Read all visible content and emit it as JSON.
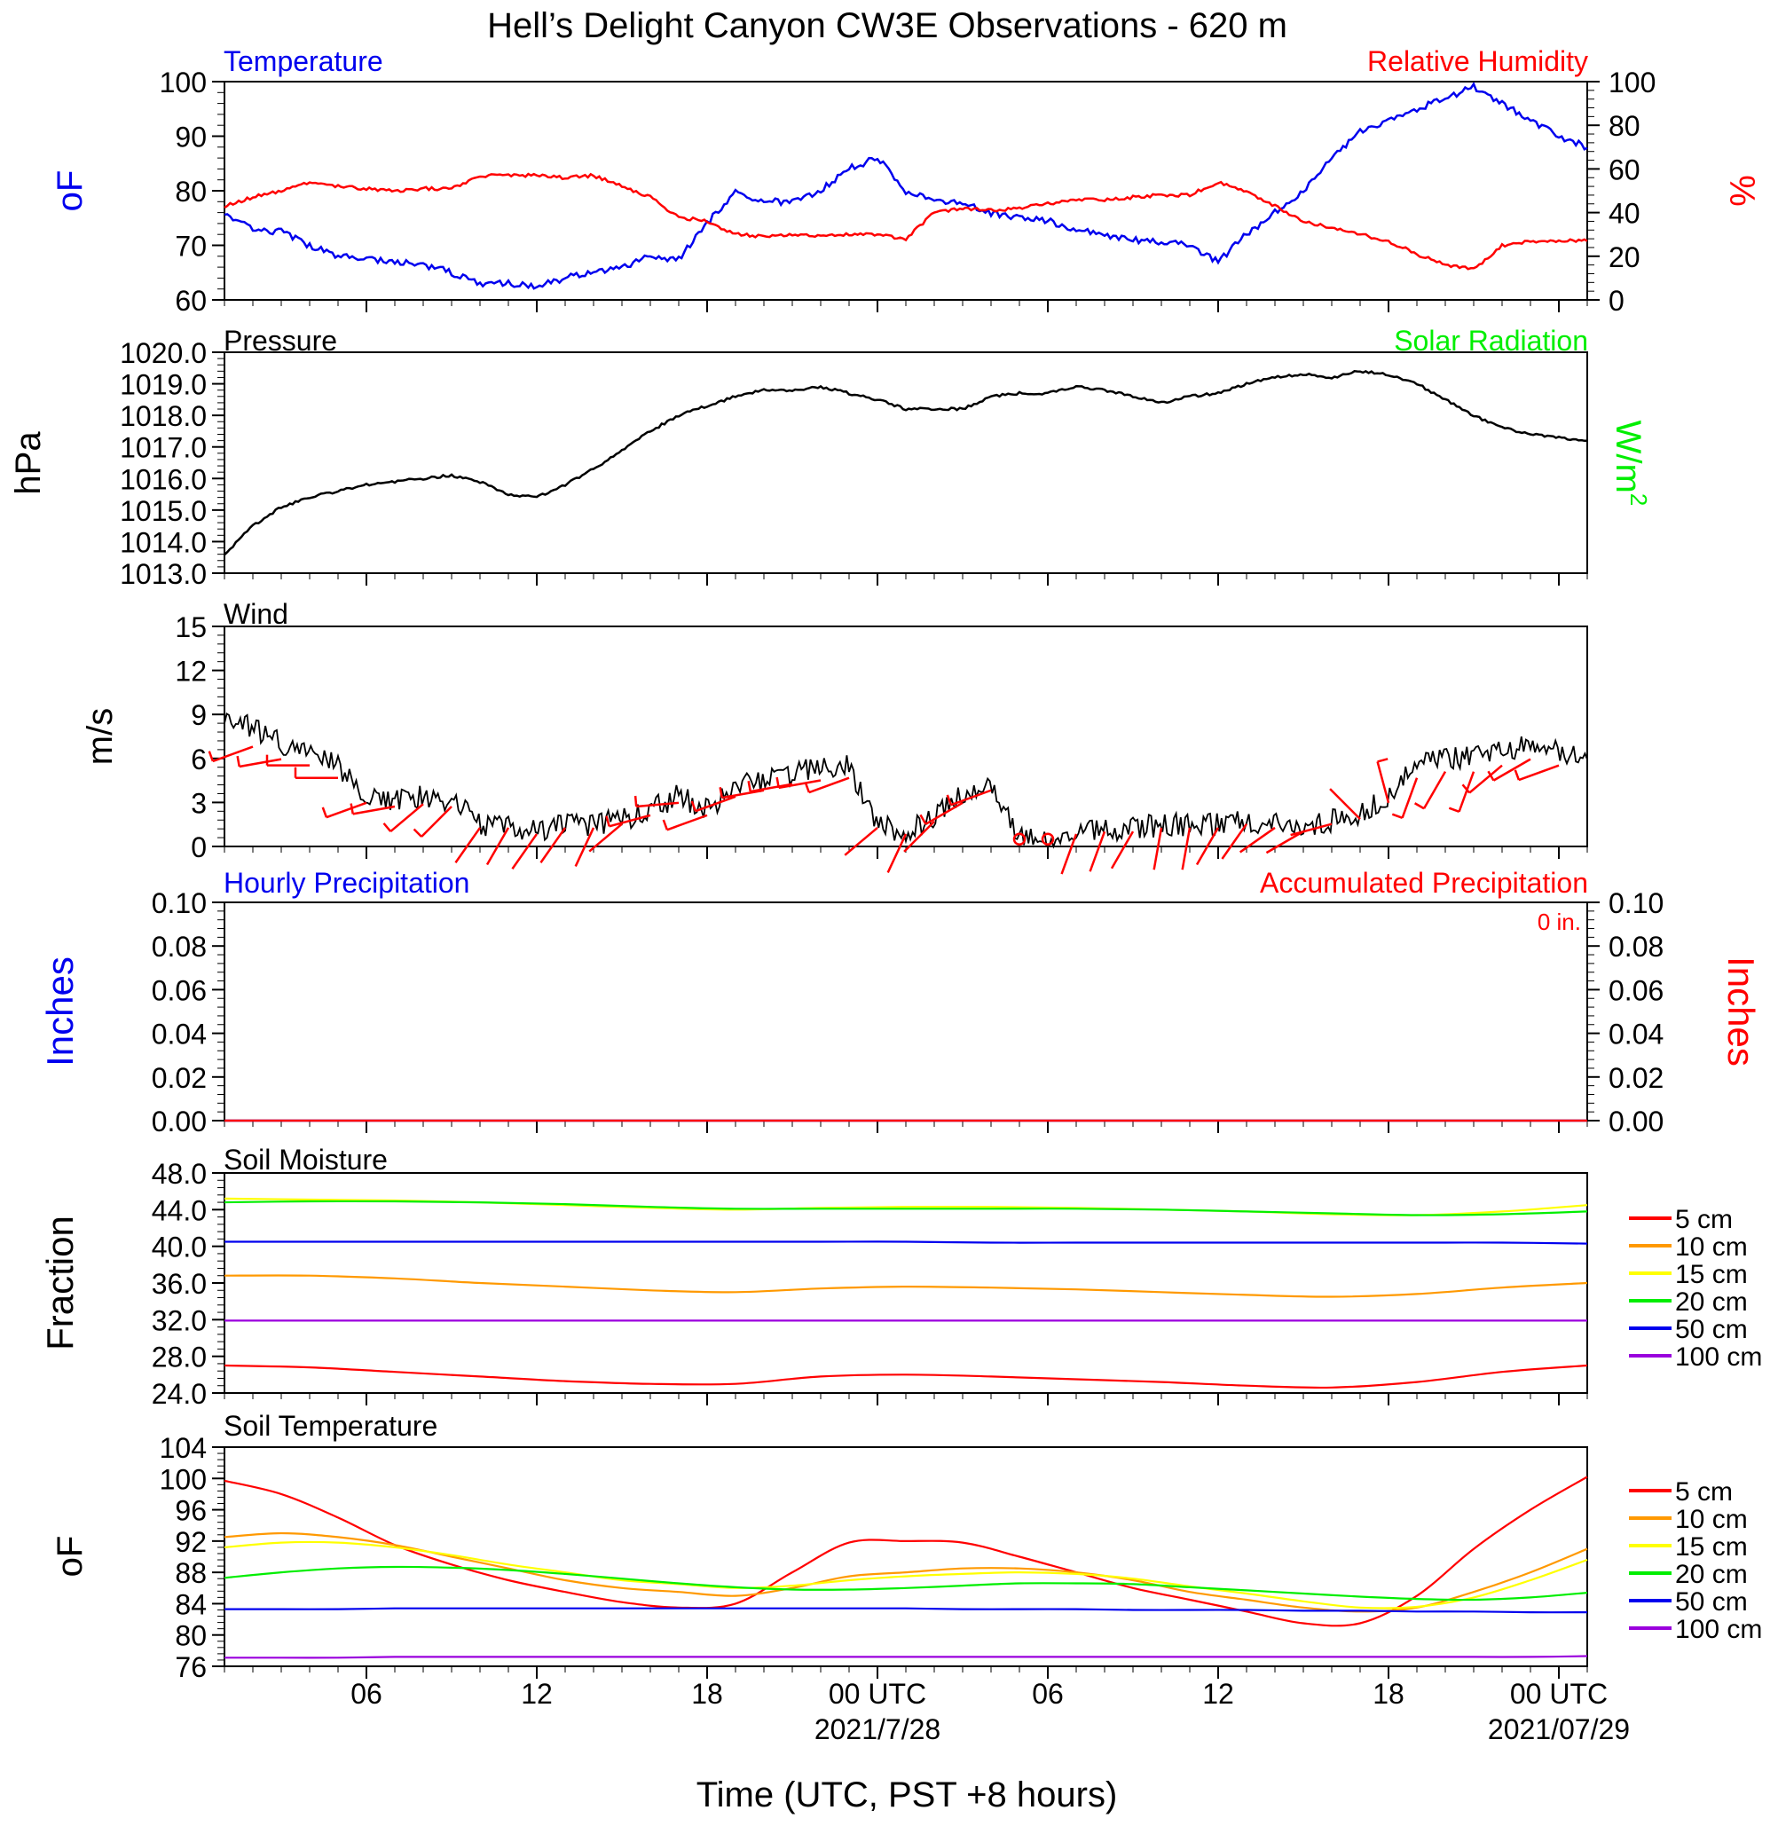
{
  "title": "Hell’s Delight Canyon CW3E Observations - 620 m",
  "xlabel": "Time (UTC, PST +8 hours)",
  "x_axis": {
    "range_hours": [
      0,
      48
    ],
    "ticks": [
      {
        "hour": 5,
        "label": "06",
        "date": ""
      },
      {
        "hour": 11,
        "label": "12",
        "date": ""
      },
      {
        "hour": 17,
        "label": "18",
        "date": ""
      },
      {
        "hour": 23,
        "label": "00 UTC",
        "date": "2021/7/28"
      },
      {
        "hour": 29,
        "label": "06",
        "date": ""
      },
      {
        "hour": 35,
        "label": "12",
        "date": ""
      },
      {
        "hour": 41,
        "label": "18",
        "date": ""
      },
      {
        "hour": 47,
        "label": "00 UTC",
        "date": "2021/07/29"
      }
    ]
  },
  "panels": {
    "temperature": {
      "left_title": "Temperature",
      "right_title": "Relative Humidity",
      "left_unit": "oF",
      "right_unit": "%",
      "left_ticks": [
        "60",
        "70",
        "80",
        "90",
        "100"
      ],
      "left_range": [
        60,
        100
      ],
      "right_ticks": [
        "0",
        "20",
        "40",
        "60",
        "80",
        "100"
      ],
      "right_range": [
        0,
        100
      ]
    },
    "pressure": {
      "left_title": "Pressure",
      "right_title": "Solar Radiation",
      "left_unit": "hPa",
      "right_unit_base": "W/m",
      "right_unit_sup": "2",
      "left_ticks": [
        "1013.0",
        "1014.0",
        "1015.0",
        "1016.0",
        "1017.0",
        "1018.0",
        "1019.0",
        "1020.0"
      ],
      "left_range": [
        1013,
        1020
      ]
    },
    "wind": {
      "left_title": "Wind",
      "left_unit": "m/s",
      "left_ticks": [
        "0",
        "3",
        "6",
        "9",
        "12",
        "15"
      ],
      "left_range": [
        0,
        15
      ]
    },
    "precip": {
      "left_title": "Hourly Precipitation",
      "right_title": "Accumulated Precipitation",
      "total_label": "0 in.",
      "left_unit": "Inches",
      "right_unit": "Inches",
      "left_ticks": [
        "0.00",
        "0.02",
        "0.04",
        "0.06",
        "0.08",
        "0.10"
      ],
      "right_ticks": [
        "0.00",
        "0.02",
        "0.04",
        "0.06",
        "0.08",
        "0.10"
      ],
      "left_range": [
        0,
        0.1
      ]
    },
    "soil_moisture": {
      "left_title": "Soil Moisture",
      "left_unit": "Fraction",
      "left_ticks": [
        "24.0",
        "28.0",
        "32.0",
        "36.0",
        "40.0",
        "44.0",
        "48.0"
      ],
      "left_range": [
        24,
        48
      ]
    },
    "soil_temperature": {
      "left_title": "Soil Temperature",
      "left_unit": "oF",
      "left_ticks": [
        "76",
        "80",
        "84",
        "88",
        "92",
        "96",
        "100",
        "104"
      ],
      "left_range": [
        76,
        104
      ]
    }
  },
  "legend": [
    {
      "label": "5 cm",
      "color": "#ff0000"
    },
    {
      "label": "10 cm",
      "color": "#ff9900"
    },
    {
      "label": "15 cm",
      "color": "#ffff00"
    },
    {
      "label": "20 cm",
      "color": "#00ee00"
    },
    {
      "label": "50 cm",
      "color": "#0000ee"
    },
    {
      "label": "100 cm",
      "color": "#9a00dd"
    }
  ],
  "colors": {
    "temperature": "#0000ee",
    "humidity": "#ff0000",
    "pressure": "#000000",
    "wind": "#000000",
    "barb": "#ff0000",
    "precip": "#ff0000",
    "solar": "#00ee00"
  },
  "chart_data": [
    {
      "type": "line",
      "name": "temperature",
      "x": [
        0,
        1,
        2,
        3,
        4,
        5,
        6,
        7,
        8,
        9,
        10,
        11,
        12,
        13,
        14,
        15,
        16,
        17,
        18,
        19,
        20,
        21,
        22,
        23,
        24,
        25,
        26,
        27,
        28,
        29,
        30,
        31,
        32,
        33,
        34,
        35,
        36,
        37,
        38,
        39,
        40,
        41,
        42,
        43,
        44,
        45,
        46,
        47,
        48
      ],
      "series": [
        {
          "name": "Temperature",
          "axis": "left",
          "values": [
            76,
            73,
            72.5,
            70,
            68,
            67.5,
            67,
            66.5,
            65,
            63,
            63,
            62.5,
            64,
            65,
            66,
            68,
            67.5,
            74,
            80,
            78,
            78,
            80,
            84,
            86,
            80,
            78,
            78,
            76,
            75,
            74.5,
            73,
            72,
            71,
            70.5,
            70,
            67,
            72,
            76,
            80,
            86,
            91,
            93,
            95,
            97,
            99,
            96,
            93,
            90,
            88
          ]
        },
        {
          "name": "Relative Humidity",
          "axis": "right",
          "values": [
            43,
            47,
            50,
            54,
            52,
            51,
            50,
            51,
            51,
            57,
            57,
            57,
            56,
            57,
            52,
            47,
            38,
            36,
            30,
            29,
            30,
            29,
            30,
            30,
            28,
            40,
            42,
            41,
            42,
            44,
            46,
            46,
            47,
            48,
            48,
            54,
            50,
            43,
            36,
            33,
            30,
            27,
            21,
            16,
            14,
            25,
            27,
            27,
            27
          ]
        }
      ]
    },
    {
      "type": "line",
      "name": "pressure",
      "x": [
        0,
        1,
        2,
        3,
        4,
        5,
        6,
        7,
        8,
        9,
        10,
        11,
        12,
        13,
        14,
        15,
        16,
        17,
        18,
        19,
        20,
        21,
        22,
        23,
        24,
        25,
        26,
        27,
        28,
        29,
        30,
        31,
        32,
        33,
        34,
        35,
        36,
        37,
        38,
        39,
        40,
        41,
        42,
        43,
        44,
        45,
        46,
        47,
        48
      ],
      "series": [
        {
          "name": "Pressure",
          "axis": "left",
          "values": [
            1013.6,
            1014.5,
            1015.1,
            1015.4,
            1015.6,
            1015.8,
            1015.9,
            1016.0,
            1016.1,
            1015.9,
            1015.5,
            1015.4,
            1015.8,
            1016.3,
            1016.9,
            1017.5,
            1018.0,
            1018.3,
            1018.6,
            1018.8,
            1018.8,
            1018.9,
            1018.7,
            1018.5,
            1018.2,
            1018.2,
            1018.2,
            1018.6,
            1018.7,
            1018.7,
            1018.9,
            1018.8,
            1018.6,
            1018.4,
            1018.6,
            1018.7,
            1019.0,
            1019.2,
            1019.3,
            1019.2,
            1019.4,
            1019.3,
            1019.0,
            1018.5,
            1018.0,
            1017.6,
            1017.4,
            1017.3,
            1017.2
          ]
        }
      ]
    },
    {
      "type": "line",
      "name": "wind",
      "x": [
        0,
        1,
        2,
        3,
        4,
        5,
        6,
        7,
        8,
        9,
        10,
        11,
        12,
        13,
        14,
        15,
        16,
        17,
        18,
        19,
        20,
        21,
        22,
        23,
        24,
        25,
        26,
        27,
        28,
        29,
        30,
        31,
        32,
        33,
        34,
        35,
        36,
        37,
        38,
        39,
        40,
        41,
        42,
        43,
        44,
        45,
        46,
        47,
        48
      ],
      "series": [
        {
          "name": "Wind speed",
          "axis": "left",
          "values": [
            9.2,
            8,
            7,
            6.5,
            5.5,
            3.5,
            3.2,
            3.4,
            3.2,
            1.5,
            1.5,
            1,
            1.5,
            1.5,
            1.8,
            2.5,
            3.5,
            2.5,
            4,
            4.5,
            5,
            5.3,
            5.5,
            1.5,
            1,
            2,
            3.5,
            4.5,
            0.5,
            0.5,
            1,
            1.2,
            1.2,
            1.5,
            1.5,
            1.5,
            1.8,
            1.5,
            1.2,
            1.8,
            2.2,
            3.5,
            5.5,
            6,
            6,
            6.5,
            7,
            6.5,
            6
          ]
        },
        {
          "name": "Wind direction (deg)",
          "axis": "none",
          "values": [
            240,
            250,
            260,
            270,
            270,
            250,
            260,
            230,
            225,
            215,
            210,
            215,
            215,
            205,
            230,
            255,
            265,
            250,
            250,
            260,
            260,
            260,
            250,
            230,
            205,
            225,
            240,
            250,
            200,
            200,
            200,
            200,
            210,
            190,
            190,
            210,
            215,
            235,
            240,
            255,
            315,
            345,
            200,
            210,
            200,
            230,
            240,
            250,
            260
          ]
        }
      ]
    },
    {
      "type": "line",
      "name": "precipitation",
      "x": [
        0,
        48
      ],
      "series": [
        {
          "name": "Hourly Precipitation",
          "axis": "left",
          "values": [
            0,
            0
          ]
        },
        {
          "name": "Accumulated Precipitation",
          "axis": "right",
          "values": [
            0,
            0
          ]
        }
      ]
    },
    {
      "type": "line",
      "name": "soil_moisture",
      "x": [
        0,
        3,
        6,
        9,
        12,
        15,
        18,
        21,
        24,
        27,
        30,
        33,
        36,
        39,
        42,
        45,
        48
      ],
      "series": [
        {
          "name": "5 cm",
          "values": [
            27,
            26.8,
            26.3,
            25.8,
            25.3,
            25,
            25,
            25.8,
            26,
            25.8,
            25.5,
            25.2,
            24.8,
            24.6,
            25.2,
            26.3,
            27
          ]
        },
        {
          "name": "10 cm",
          "values": [
            36.8,
            36.8,
            36.5,
            36,
            35.6,
            35.2,
            35,
            35.4,
            35.6,
            35.5,
            35.3,
            35,
            34.7,
            34.5,
            34.8,
            35.5,
            36
          ]
        },
        {
          "name": "15 cm",
          "values": [
            45.2,
            45.1,
            45,
            44.8,
            44.5,
            44.2,
            44,
            44.2,
            44.3,
            44.3,
            44.2,
            44,
            43.8,
            43.5,
            43.4,
            43.8,
            44.5
          ]
        },
        {
          "name": "20 cm",
          "values": [
            44.8,
            44.9,
            44.9,
            44.8,
            44.6,
            44.3,
            44.1,
            44.1,
            44.1,
            44.1,
            44.1,
            44,
            43.8,
            43.6,
            43.4,
            43.5,
            43.8
          ]
        },
        {
          "name": "50 cm",
          "values": [
            40.5,
            40.5,
            40.5,
            40.5,
            40.5,
            40.5,
            40.5,
            40.5,
            40.5,
            40.4,
            40.4,
            40.4,
            40.4,
            40.4,
            40.4,
            40.4,
            40.3
          ]
        },
        {
          "name": "100 cm",
          "values": [
            31.9,
            31.9,
            31.9,
            31.9,
            31.9,
            31.9,
            31.9,
            31.9,
            31.9,
            31.9,
            31.9,
            31.9,
            31.9,
            31.9,
            31.9,
            31.9,
            31.9
          ]
        }
      ]
    },
    {
      "type": "line",
      "name": "soil_temperature",
      "x": [
        0,
        2,
        4,
        6,
        8,
        10,
        12,
        14,
        16,
        18,
        20,
        22,
        24,
        26,
        28,
        30,
        32,
        34,
        36,
        38,
        40,
        42,
        44,
        46,
        48
      ],
      "series": [
        {
          "name": "5 cm",
          "values": [
            99.7,
            98,
            95,
            91.5,
            89,
            87,
            85.5,
            84.2,
            83.5,
            84,
            88,
            91.8,
            92,
            91.8,
            90,
            88,
            86,
            84.5,
            83,
            81.5,
            81.5,
            85,
            91,
            96,
            100.2
          ]
        },
        {
          "name": "10 cm",
          "values": [
            92.5,
            93,
            92.5,
            91.5,
            90,
            88.5,
            87,
            86,
            85.5,
            85,
            86,
            87.5,
            88,
            88.5,
            88.5,
            88,
            87,
            85.5,
            84.5,
            83.5,
            83,
            83.5,
            85.5,
            88,
            91
          ]
        },
        {
          "name": "15 cm",
          "values": [
            91.2,
            91.8,
            91.8,
            91.2,
            90.2,
            89,
            88,
            87,
            86.5,
            86,
            86.3,
            87,
            87.5,
            87.8,
            88,
            87.8,
            87.2,
            86.2,
            85.3,
            84.3,
            83.5,
            83.6,
            84.8,
            87,
            89.6
          ]
        },
        {
          "name": "20 cm",
          "values": [
            87.3,
            88,
            88.5,
            88.7,
            88.6,
            88.3,
            87.8,
            87.2,
            86.6,
            86.1,
            85.8,
            85.8,
            86,
            86.3,
            86.6,
            86.6,
            86.5,
            86.1,
            85.7,
            85.3,
            84.9,
            84.6,
            84.5,
            84.8,
            85.4
          ]
        },
        {
          "name": "50 cm",
          "values": [
            83.3,
            83.3,
            83.3,
            83.4,
            83.4,
            83.4,
            83.4,
            83.4,
            83.4,
            83.4,
            83.4,
            83.4,
            83.4,
            83.3,
            83.3,
            83.3,
            83.2,
            83.2,
            83.2,
            83.1,
            83.1,
            83,
            83,
            82.9,
            82.9
          ]
        },
        {
          "name": "100 cm",
          "values": [
            77.1,
            77.1,
            77.1,
            77.2,
            77.2,
            77.2,
            77.2,
            77.2,
            77.2,
            77.2,
            77.2,
            77.2,
            77.2,
            77.2,
            77.2,
            77.2,
            77.2,
            77.2,
            77.2,
            77.2,
            77.2,
            77.2,
            77.2,
            77.2,
            77.3
          ]
        }
      ]
    }
  ]
}
